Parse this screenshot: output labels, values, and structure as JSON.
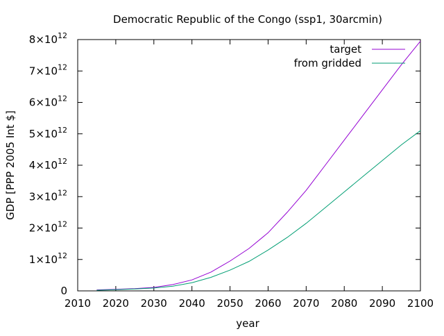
{
  "chart_data": {
    "type": "line",
    "title": "Democratic Republic of the Congo (ssp1, 30arcmin)",
    "xlabel": "year",
    "ylabel": "GDP [PPP 2005 Int $]",
    "xlim": [
      2010,
      2100
    ],
    "ylim": [
      0,
      8000000000000
    ],
    "x_ticks": [
      "2010",
      "2020",
      "2030",
      "2040",
      "2050",
      "2060",
      "2070",
      "2080",
      "2090",
      "2100"
    ],
    "y_ticks": [
      {
        "value": 0,
        "mantissa": "0",
        "exponent": ""
      },
      {
        "value": 1000000000000,
        "mantissa": "1×10",
        "exponent": "12"
      },
      {
        "value": 2000000000000,
        "mantissa": "2×10",
        "exponent": "12"
      },
      {
        "value": 3000000000000,
        "mantissa": "3×10",
        "exponent": "12"
      },
      {
        "value": 4000000000000,
        "mantissa": "4×10",
        "exponent": "12"
      },
      {
        "value": 5000000000000,
        "mantissa": "5×10",
        "exponent": "12"
      },
      {
        "value": 6000000000000,
        "mantissa": "6×10",
        "exponent": "12"
      },
      {
        "value": 7000000000000,
        "mantissa": "7×10",
        "exponent": "12"
      },
      {
        "value": 8000000000000,
        "mantissa": "8×10",
        "exponent": "12"
      }
    ],
    "legend_position": "top-right",
    "grid": false,
    "x": [
      2015,
      2020,
      2025,
      2030,
      2035,
      2040,
      2045,
      2050,
      2055,
      2060,
      2065,
      2070,
      2075,
      2080,
      2085,
      2090,
      2095,
      2100
    ],
    "series": [
      {
        "name": "target",
        "color": "#9400d3",
        "values": [
          30000000000,
          50000000000,
          70000000000,
          110000000000,
          200000000000,
          350000000000,
          600000000000,
          950000000000,
          1350000000000,
          1850000000000,
          2500000000000,
          3200000000000,
          4000000000000,
          4800000000000,
          5600000000000,
          6400000000000,
          7200000000000,
          7950000000000
        ]
      },
      {
        "name": "from gridded",
        "color": "#009e73",
        "values": [
          20000000000,
          40000000000,
          60000000000,
          90000000000,
          150000000000,
          260000000000,
          430000000000,
          660000000000,
          940000000000,
          1300000000000,
          1700000000000,
          2150000000000,
          2650000000000,
          3150000000000,
          3650000000000,
          4150000000000,
          4650000000000,
          5100000000000
        ]
      }
    ]
  }
}
